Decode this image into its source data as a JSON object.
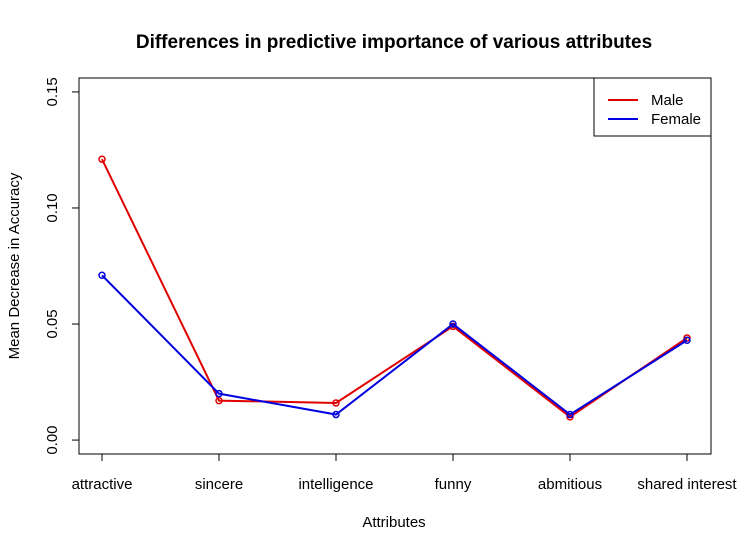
{
  "chart_data": {
    "type": "line",
    "title": "Differences in predictive importance of various attributes",
    "xlabel": "Attributes",
    "ylabel": "Mean Decrease in Accuracy",
    "categories": [
      "attractive",
      "sincere",
      "intelligence",
      "funny",
      "abmitious",
      "shared interest"
    ],
    "ylim": [
      -0.006,
      0.156
    ],
    "yticks": [
      0.0,
      0.05,
      0.1,
      0.15
    ],
    "ytick_labels": [
      "0.00",
      "0.05",
      "0.10",
      "0.15"
    ],
    "grid": false,
    "legend_position": "top-right",
    "series": [
      {
        "name": "Male",
        "color": "#e00000",
        "values": [
          0.121,
          0.017,
          0.016,
          0.049,
          0.01,
          0.044
        ]
      },
      {
        "name": "Female",
        "color": "#0000e0",
        "values": [
          0.071,
          0.02,
          0.011,
          0.05,
          0.011,
          0.043
        ]
      }
    ]
  }
}
